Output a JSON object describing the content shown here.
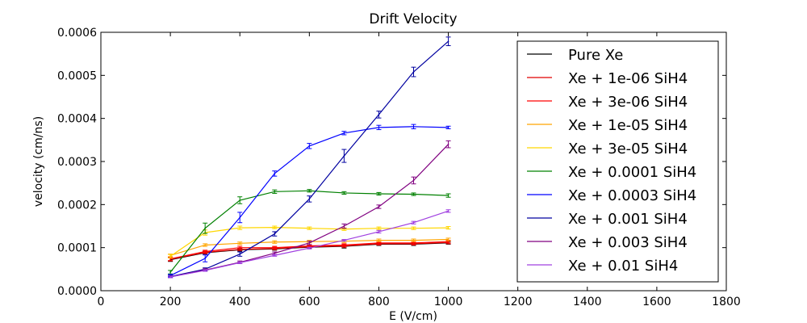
{
  "chart_data": {
    "type": "line",
    "title": "Drift Velocity",
    "xlabel": "E (V/cm)",
    "ylabel": "velocity (cm/ns)",
    "xlim": [
      0,
      1800
    ],
    "ylim": [
      0,
      0.0006
    ],
    "x_ticks": [
      "0",
      "200",
      "400",
      "600",
      "800",
      "1000",
      "1200",
      "1400",
      "1600",
      "1800"
    ],
    "y_ticks": [
      "0.0000",
      "0.0001",
      "0.0002",
      "0.0003",
      "0.0004",
      "0.0005",
      "0.0006"
    ],
    "grid": false,
    "legend_position": "top-right",
    "x": [
      200,
      300,
      400,
      500,
      600,
      700,
      800,
      900,
      1000
    ],
    "series": [
      {
        "name": "Pure Xe",
        "color": "#000000",
        "values": [
          7.2e-05,
          8.8e-05,
          9.5e-05,
          9.7e-05,
          0.000101,
          0.000103,
          0.000108,
          0.000108,
          0.000111
        ],
        "errors": [
          4e-06,
          3e-06,
          3e-06,
          3e-06,
          3e-06,
          4e-06,
          3e-06,
          3e-06,
          3e-06
        ]
      },
      {
        "name": "Xe + 1e-06 SiH4",
        "color": "#e00000",
        "values": [
          7.3e-05,
          8.9e-05,
          9.6e-05,
          9.8e-05,
          0.000102,
          0.000104,
          0.000109,
          0.000109,
          0.000112
        ],
        "errors": [
          4e-06,
          3e-06,
          3e-06,
          3e-06,
          3e-06,
          3e-06,
          3e-06,
          3e-06,
          3e-06
        ]
      },
      {
        "name": "Xe + 3e-06 SiH4",
        "color": "#ff0000",
        "values": [
          7.4e-05,
          9.1e-05,
          0.0001,
          0.0001,
          0.000104,
          0.000106,
          0.000111,
          0.000111,
          0.000114
        ],
        "errors": [
          4e-06,
          3e-06,
          3e-06,
          3e-06,
          3e-06,
          3e-06,
          3e-06,
          3e-06,
          3e-06
        ]
      },
      {
        "name": "Xe + 1e-05 SiH4",
        "color": "#ffa500",
        "values": [
          8.2e-05,
          0.000106,
          0.00011,
          0.000113,
          0.000114,
          0.000115,
          0.000117,
          0.000117,
          0.000119
        ],
        "errors": [
          3e-06,
          3e-06,
          3e-06,
          3e-06,
          3e-06,
          3e-06,
          3e-06,
          3e-06,
          3e-06
        ]
      },
      {
        "name": "Xe + 3e-05 SiH4",
        "color": "#ffd700",
        "values": [
          8e-05,
          0.000135,
          0.000146,
          0.000147,
          0.000145,
          0.000143,
          0.000145,
          0.000145,
          0.000146
        ],
        "errors": [
          4e-06,
          6e-06,
          4e-06,
          3e-06,
          3e-06,
          3e-06,
          3e-06,
          3e-06,
          3e-06
        ]
      },
      {
        "name": "Xe + 0.0001 SiH4",
        "color": "#008000",
        "values": [
          4.3e-05,
          0.000145,
          0.00021,
          0.00023,
          0.000232,
          0.000227,
          0.000225,
          0.000224,
          0.000221
        ],
        "errors": [
          4e-06,
          1.2e-05,
          8e-06,
          4e-06,
          3e-06,
          3e-06,
          3e-06,
          3e-06,
          4e-06
        ]
      },
      {
        "name": "Xe + 0.0003 SiH4",
        "color": "#0000ff",
        "values": [
          3.5e-05,
          7.5e-05,
          0.00017,
          0.000272,
          0.000336,
          0.000366,
          0.000379,
          0.000381,
          0.000379
        ],
        "errors": [
          3e-06,
          8e-06,
          1.2e-05,
          6e-06,
          6e-06,
          4e-06,
          5e-06,
          5e-06,
          3e-06
        ]
      },
      {
        "name": "Xe + 0.001 SiH4",
        "color": "#0000a0",
        "values": [
          3.3e-05,
          5e-05,
          8.5e-05,
          0.000132,
          0.000213,
          0.000313,
          0.000409,
          0.000508,
          0.000579
        ],
        "errors": [
          3e-06,
          3e-06,
          5e-06,
          5e-06,
          7e-06,
          1.5e-05,
          8e-06,
          1.1e-05,
          1e-05
        ]
      },
      {
        "name": "Xe + 0.003 SiH4",
        "color": "#800080",
        "values": [
          3.2e-05,
          4.8e-05,
          6.6e-05,
          8.7e-05,
          0.000111,
          0.00015,
          0.000195,
          0.000256,
          0.00034
        ],
        "errors": [
          2e-06,
          3e-06,
          3e-06,
          3e-06,
          4e-06,
          5e-06,
          4e-06,
          8e-06,
          8e-06
        ]
      },
      {
        "name": "Xe + 0.01 SiH4",
        "color": "#a040e0",
        "values": [
          3.2e-05,
          4.7e-05,
          6.5e-05,
          8.2e-05,
          9.9e-05,
          0.000117,
          0.000137,
          0.000158,
          0.000185
        ],
        "errors": [
          2e-06,
          2e-06,
          2e-06,
          2e-06,
          2e-06,
          2e-06,
          3e-06,
          3e-06,
          3e-06
        ]
      }
    ]
  }
}
